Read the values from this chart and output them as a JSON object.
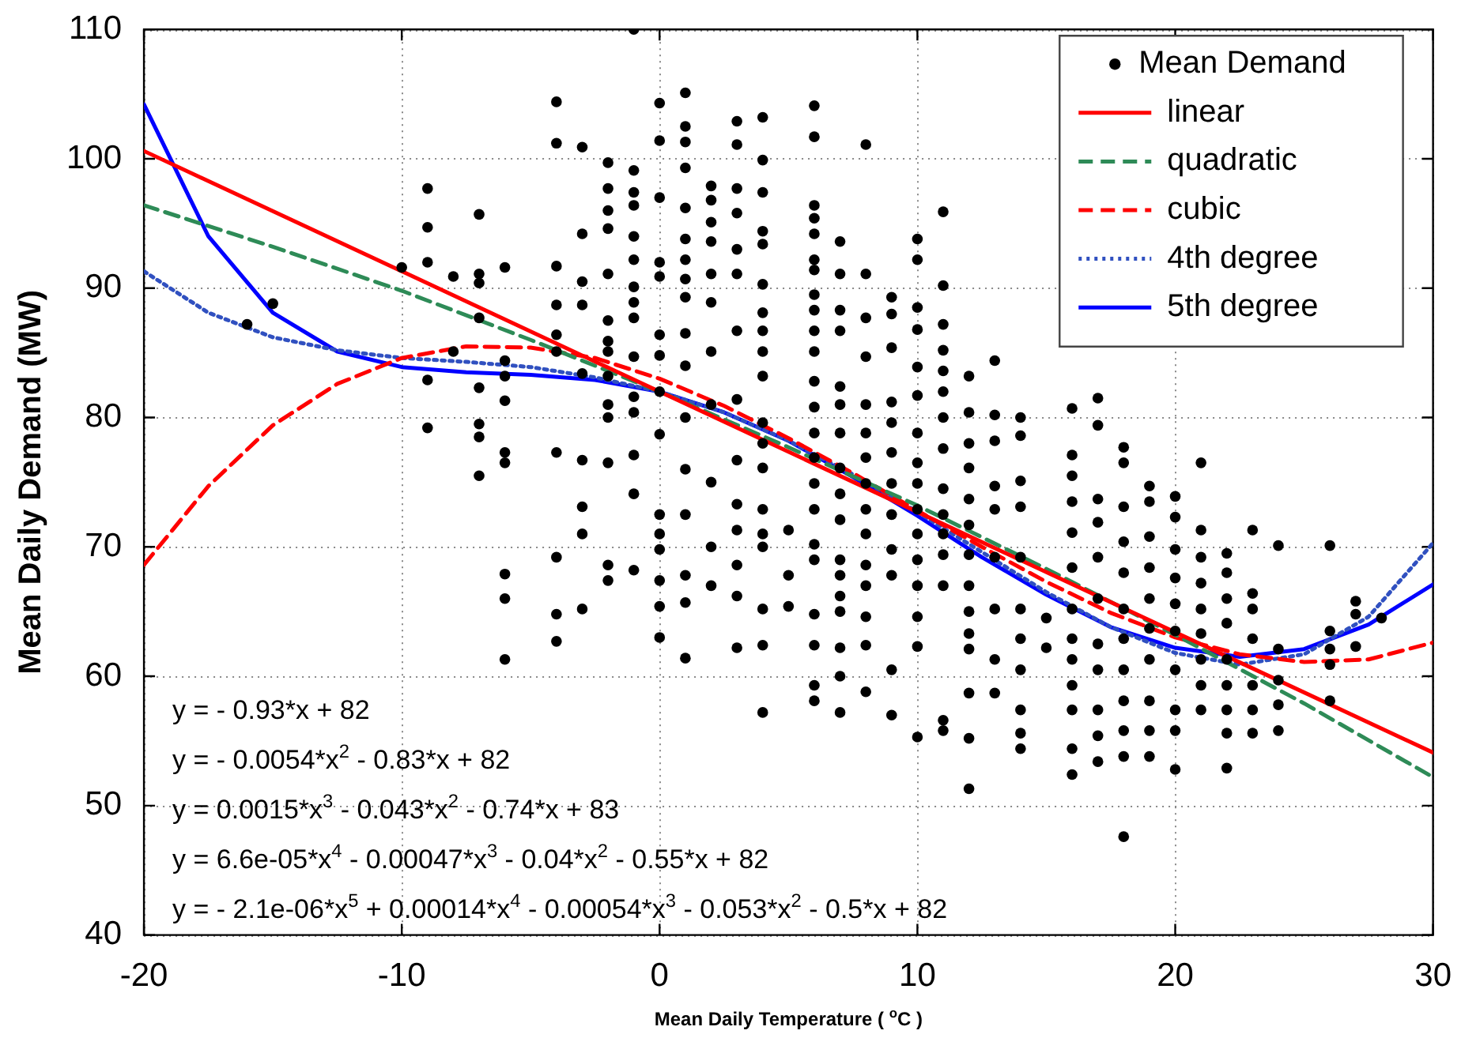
{
  "chart_data": {
    "type": "scatter",
    "xlabel": "Mean Daily Temperature ( $^{o}$C )",
    "ylabel": "Mean Daily Demand (MW)",
    "x": [
      -20,
      -17.5,
      -15,
      -12.5,
      -10,
      -7.5,
      -5,
      -2.5,
      0,
      2.5,
      5,
      7.5,
      10,
      12.5,
      15,
      17.5,
      20,
      22.5,
      25,
      27.5,
      30
    ],
    "xlim": [
      -20,
      30
    ],
    "xticks": [
      -20,
      -10,
      0,
      10,
      20,
      30
    ],
    "ylim": [
      40,
      110
    ],
    "yticks": [
      40,
      50,
      60,
      70,
      80,
      90,
      100,
      110
    ],
    "grid": true,
    "legend": "top right",
    "series": [
      {
        "name": "Mean Demand",
        "color": "#000000",
        "marker": "circle",
        "x": [
          -16,
          -15,
          -10,
          -9,
          -9,
          -9,
          -9,
          -9,
          -8,
          -8,
          -7,
          -7,
          -7,
          -7,
          -7,
          -7,
          -7,
          -7,
          -6,
          -6,
          -6,
          -6,
          -6,
          -6,
          -6,
          -6,
          -6,
          -4,
          -4,
          -4,
          -4,
          -4,
          -4,
          -4,
          -4,
          -4,
          -4,
          -3,
          -3,
          -3,
          -3,
          -3,
          -3,
          -3,
          -3,
          -3,
          -2,
          -2,
          -2,
          -2,
          -2,
          -2,
          -2,
          -2,
          -2,
          -2,
          -2,
          -2,
          -2,
          -2,
          -1,
          -1,
          -1,
          -1,
          -1,
          -1,
          -1,
          -1,
          -1,
          -1,
          -1,
          -1,
          -1,
          -1,
          -1,
          0,
          0,
          0,
          0,
          0,
          0,
          0,
          0,
          0,
          0,
          0,
          0,
          0,
          0,
          0,
          1,
          1,
          1,
          1,
          1,
          1,
          1,
          1,
          1,
          1,
          1,
          1,
          1,
          1,
          1,
          1,
          1,
          2,
          2,
          2,
          2,
          2,
          2,
          2,
          2,
          2,
          2,
          2,
          3,
          3,
          3,
          3,
          3,
          3,
          3,
          3,
          3,
          3,
          3,
          3,
          3,
          3,
          4,
          4,
          4,
          4,
          4,
          4,
          4,
          4,
          4,
          4,
          4,
          4,
          4,
          4,
          4,
          4,
          4,
          4,
          4,
          5,
          5,
          5,
          6,
          6,
          6,
          6,
          6,
          6,
          6,
          6,
          6,
          6,
          6,
          6,
          6,
          6,
          6,
          6,
          6,
          6,
          6,
          6,
          6,
          6,
          6,
          7,
          7,
          7,
          7,
          7,
          7,
          7,
          7,
          7,
          7,
          7,
          7,
          7,
          7,
          7,
          7,
          7,
          8,
          8,
          8,
          8,
          8,
          8,
          8,
          8,
          8,
          8,
          8,
          8,
          8,
          8,
          8,
          9,
          9,
          9,
          9,
          9,
          9,
          9,
          9,
          9,
          9,
          9,
          9,
          10,
          10,
          10,
          10,
          10,
          10,
          10,
          10,
          10,
          10,
          10,
          10,
          10,
          10,
          10,
          10,
          11,
          11,
          11,
          11,
          11,
          11,
          11,
          11,
          11,
          11,
          11,
          11,
          11,
          11,
          11,
          12,
          12,
          12,
          12,
          12,
          12,
          12,
          12,
          12,
          12,
          12,
          12,
          12,
          12,
          13,
          13,
          13,
          13,
          13,
          13,
          13,
          13,
          13,
          14,
          14,
          14,
          14,
          14,
          14,
          14,
          14,
          14,
          14,
          14,
          15,
          15,
          16,
          16,
          16,
          16,
          16,
          16,
          16,
          16,
          16,
          16,
          16,
          16,
          16,
          17,
          17,
          17,
          17,
          17,
          17,
          17,
          17,
          17,
          17,
          17,
          18,
          18,
          18,
          18,
          18,
          18,
          18,
          18,
          18,
          18,
          18,
          18,
          19,
          19,
          19,
          19,
          19,
          19,
          19,
          19,
          19,
          19,
          20,
          20,
          20,
          20,
          20,
          20,
          20,
          20,
          20,
          20,
          21,
          21,
          21,
          21,
          21,
          21,
          21,
          21,
          21,
          22,
          22,
          22,
          22,
          22,
          22,
          22,
          22,
          22,
          23,
          23,
          23,
          23,
          23,
          23,
          23,
          24,
          24,
          24,
          24,
          24,
          26,
          26,
          26,
          26,
          26,
          27,
          27,
          27,
          28
        ],
        "values": [
          87.2,
          88.8,
          91.6,
          97.7,
          94.7,
          92.0,
          82.9,
          79.2,
          90.9,
          85.1,
          95.7,
          91.1,
          90.4,
          87.7,
          82.3,
          79.5,
          78.5,
          75.5,
          91.6,
          84.4,
          83.2,
          81.3,
          77.3,
          76.5,
          67.9,
          66.0,
          61.3,
          104.4,
          101.2,
          91.7,
          88.7,
          86.4,
          85.1,
          77.3,
          69.2,
          64.8,
          62.7,
          100.9,
          94.2,
          90.5,
          88.7,
          83.4,
          76.7,
          73.1,
          71.0,
          65.2,
          99.7,
          97.7,
          96.0,
          94.6,
          91.1,
          87.5,
          85.9,
          85.1,
          83.2,
          81.0,
          80.0,
          76.5,
          68.6,
          67.4,
          110,
          99.1,
          97.4,
          96.4,
          94.0,
          92.2,
          90.1,
          88.9,
          87.7,
          84.7,
          81.6,
          80.4,
          77.1,
          74.1,
          68.2,
          104.3,
          101.4,
          97.0,
          92.0,
          90.9,
          86.4,
          84.8,
          82.0,
          78.7,
          72.5,
          71.0,
          69.8,
          67.4,
          65.4,
          63.0,
          105.1,
          102.5,
          101.3,
          99.3,
          96.2,
          93.8,
          92.2,
          90.7,
          89.3,
          86.5,
          84.0,
          80.0,
          76.0,
          72.5,
          67.8,
          65.7,
          61.4,
          97.9,
          96.8,
          95.1,
          93.6,
          91.1,
          88.9,
          85.1,
          81.0,
          75.0,
          70.0,
          67.0,
          102.9,
          101.1,
          97.7,
          95.8,
          93.0,
          91.1,
          86.7,
          81.4,
          76.7,
          73.3,
          71.3,
          68.6,
          66.2,
          62.2,
          103.2,
          99.9,
          97.4,
          94.4,
          93.4,
          90.3,
          88.1,
          86.7,
          85.1,
          83.2,
          79.6,
          78.0,
          76.1,
          72.9,
          71.0,
          70.0,
          65.2,
          62.4,
          57.2,
          71.3,
          67.8,
          65.4,
          104.1,
          101.7,
          96.4,
          95.4,
          94.2,
          92.2,
          91.4,
          89.5,
          88.3,
          86.7,
          85.1,
          82.8,
          80.8,
          78.8,
          76.9,
          74.9,
          72.9,
          70.2,
          69.0,
          64.8,
          62.4,
          59.3,
          58.1,
          93.6,
          91.1,
          88.3,
          86.7,
          82.4,
          81.0,
          78.8,
          76.1,
          74.1,
          72.1,
          69.0,
          67.8,
          66.2,
          65.0,
          62.2,
          60.0,
          57.2,
          101.1,
          91.1,
          87.7,
          84.7,
          81.0,
          78.8,
          76.9,
          74.9,
          72.9,
          71.0,
          68.6,
          67.0,
          64.6,
          62.4,
          58.8,
          89.3,
          88.0,
          85.4,
          81.2,
          79.6,
          77.3,
          74.9,
          72.5,
          69.8,
          67.8,
          60.5,
          57.0,
          93.8,
          92.2,
          88.5,
          86.8,
          83.9,
          81.7,
          78.8,
          76.5,
          74.9,
          72.9,
          71.0,
          69.0,
          67.0,
          64.6,
          62.3,
          55.3,
          95.9,
          90.2,
          87.2,
          85.2,
          83.6,
          82.0,
          80.0,
          77.6,
          74.5,
          72.5,
          71.0,
          69.4,
          67.0,
          56.6,
          55.8,
          83.2,
          80.4,
          78.0,
          76.1,
          73.7,
          71.7,
          69.4,
          67.0,
          65.0,
          63.3,
          62.1,
          58.7,
          55.2,
          51.3,
          84.4,
          80.2,
          78.2,
          74.7,
          72.9,
          69.2,
          65.2,
          61.3,
          58.7,
          80.0,
          78.6,
          75.1,
          73.1,
          69.2,
          65.2,
          62.9,
          60.5,
          57.4,
          55.6,
          54.4,
          64.5,
          62.2,
          80.7,
          77.1,
          75.5,
          73.5,
          71.1,
          68.4,
          65.2,
          62.9,
          61.3,
          59.3,
          57.4,
          54.4,
          52.4,
          81.5,
          79.4,
          73.7,
          71.9,
          69.2,
          66.0,
          62.5,
          60.5,
          57.4,
          55.4,
          53.4,
          77.7,
          76.5,
          73.1,
          70.4,
          68.0,
          65.2,
          62.9,
          60.5,
          58.1,
          55.8,
          53.8,
          47.6,
          74.7,
          73.5,
          70.8,
          68.4,
          66.0,
          63.7,
          61.3,
          58.1,
          55.8,
          53.8,
          73.9,
          72.3,
          69.8,
          67.6,
          65.6,
          63.5,
          60.5,
          57.4,
          55.8,
          52.8,
          76.5,
          71.3,
          69.2,
          67.2,
          65.2,
          63.3,
          61.3,
          59.3,
          57.4,
          69.5,
          68.0,
          66.0,
          64.1,
          61.3,
          59.3,
          57.4,
          55.6,
          52.9,
          71.3,
          66.4,
          65.2,
          62.9,
          59.3,
          57.4,
          55.6,
          70.1,
          62.1,
          59.7,
          57.8,
          55.8,
          70.1,
          63.5,
          62.1,
          60.9,
          58.1,
          65.8,
          64.8,
          62.3,
          64.5
        ]
      },
      {
        "name": "linear",
        "type": "line",
        "color": "#ff0000",
        "line_style": "solid",
        "marker": "none",
        "x": [
          -20,
          30
        ],
        "values": [
          100.6,
          54.1
        ]
      },
      {
        "name": "quadratic",
        "type": "line",
        "color": "#2e8b57",
        "line_style": "dashed",
        "marker": "none",
        "x": [
          -20,
          -15,
          -10,
          -5,
          0,
          5,
          10,
          15,
          20,
          25,
          30
        ],
        "values": [
          96.4,
          93.2,
          89.8,
          86.0,
          82,
          77.7,
          73.2,
          68.3,
          63.2,
          57.9,
          52.2
        ]
      },
      {
        "name": "cubic",
        "type": "line",
        "color": "#ff0000",
        "line_style": "dashed",
        "marker": "none",
        "values": [
          68.6,
          74.7,
          79.4,
          82.6,
          84.6,
          85.5,
          85.4,
          84.6,
          83,
          80.9,
          78.4,
          75.7,
          72.8,
          70.0,
          67.3,
          64.9,
          63,
          61.7,
          61.1,
          61.3,
          62.6
        ]
      },
      {
        "name": "4th degree",
        "type": "line",
        "color": "#3050c0",
        "line_style": "dotted",
        "marker": "none",
        "values": [
          91.3,
          88.1,
          86.2,
          85.2,
          84.6,
          84.3,
          83.9,
          83.1,
          82,
          80.4,
          78.2,
          75.6,
          72.7,
          69.6,
          66.5,
          63.8,
          61.8,
          60.9,
          61.7,
          64.6,
          70.3
        ]
      },
      {
        "name": "5th degree",
        "type": "line",
        "color": "#0000ff",
        "line_style": "solid",
        "marker": "none",
        "values": [
          104.2,
          94.0,
          88.1,
          85.1,
          83.9,
          83.5,
          83.3,
          82.9,
          82,
          80.4,
          78.2,
          75.4,
          72.4,
          69.2,
          66.3,
          63.8,
          62.2,
          61.5,
          62.1,
          64.0,
          67.1
        ]
      }
    ],
    "annotations": [
      "y = - 0.93*x + 82",
      "y = - 0.0054*x$^{2}$ - 0.83*x + 82",
      "y = 0.0015*x$^{3}$ - 0.043*x$^{2}$ - 0.74*x + 83",
      "y = 6.6e-05*x$^{4}$ - 0.00047*x$^{3}$ - 0.04*x$^{2}$ - 0.55*x + 82",
      "y = - 2.1e-06*x$^{5}$ + 0.00014*x$^{4}$ - 0.00054*x$^{3}$ - 0.053*x$^{2}$ - 0.5*x + 82"
    ]
  }
}
